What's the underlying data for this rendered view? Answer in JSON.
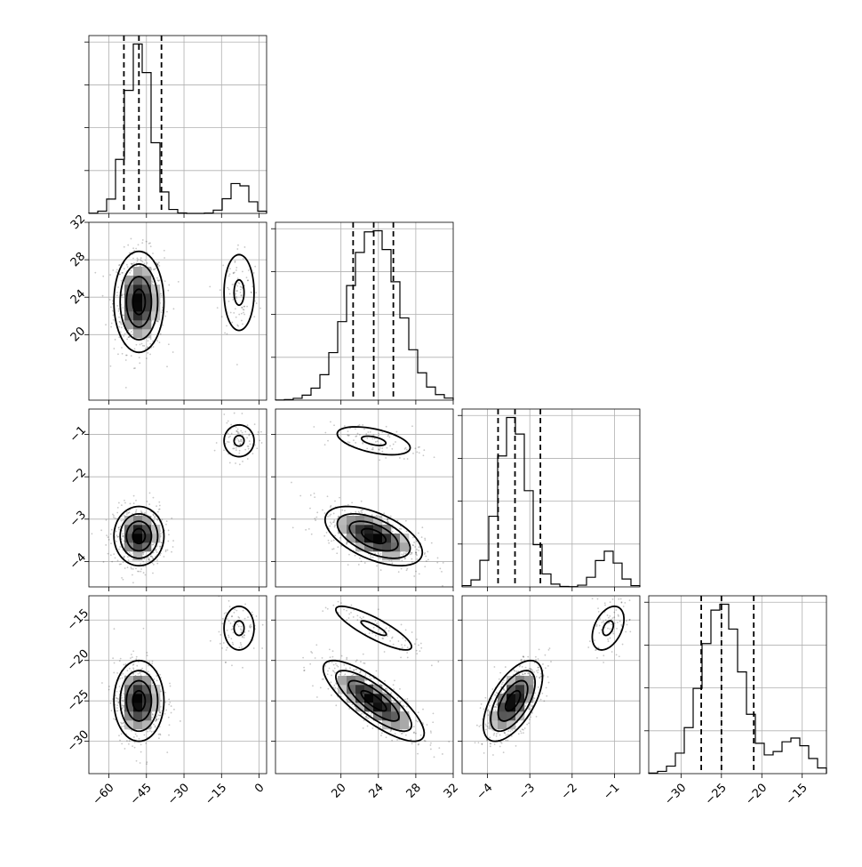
{
  "chart_data": {
    "type": "corner",
    "parameters": [
      {
        "range": [
          -68,
          3
        ],
        "ticks": [
          -60,
          -45,
          -30,
          -15,
          0
        ],
        "tick_labels": [
          "−60",
          "−45",
          "−30",
          "−15",
          "0"
        ],
        "quantiles": [
          -54,
          -48,
          -39
        ],
        "modes": [
          {
            "weight": 0.87,
            "mean": -48,
            "sd": 5
          },
          {
            "weight": 0.13,
            "mean": -8,
            "sd": 4
          }
        ],
        "hist_bins": 20
      },
      {
        "range": [
          13,
          32
        ],
        "ticks": [
          20,
          24,
          28,
          32
        ],
        "tick_labels": [
          "20",
          "24",
          "28",
          "32"
        ],
        "quantiles": [
          21.3,
          23.5,
          25.6
        ],
        "modes": [
          {
            "weight": 1.0,
            "mean": 23.5,
            "sd": 2.7
          }
        ],
        "hist_bins": 20
      },
      {
        "range": [
          -4.6,
          -0.4
        ],
        "ticks": [
          -4,
          -3,
          -2,
          -1
        ],
        "tick_labels": [
          "−4",
          "−3",
          "−2",
          "−1"
        ],
        "quantiles": [
          -3.75,
          -3.35,
          -2.75
        ],
        "modes": [
          {
            "weight": 0.87,
            "mean": -3.4,
            "sd": 0.35
          },
          {
            "weight": 0.13,
            "mean": -1.15,
            "sd": 0.25
          }
        ],
        "hist_bins": 20
      },
      {
        "range": [
          -34,
          -12
        ],
        "ticks": [
          -30,
          -25,
          -20,
          -15
        ],
        "tick_labels": [
          "−30",
          "−25",
          "−20",
          "−15"
        ],
        "quantiles": [
          -27.5,
          -25,
          -21
        ],
        "modes": [
          {
            "weight": 0.87,
            "mean": -25,
            "sd": 2.5
          },
          {
            "weight": 0.13,
            "mean": -16,
            "sd": 1.8
          }
        ],
        "hist_bins": 20
      }
    ],
    "diag_y_ticks": 4,
    "grid": true,
    "y_tick_labels_on": [
      1,
      2,
      3
    ],
    "x_tick_labels_on": [
      0,
      1,
      2,
      3
    ],
    "pairs": [
      {
        "row": 1,
        "col": 0,
        "clusters": [
          {
            "mx": -48,
            "my": 23.5,
            "sx": 5,
            "sy": 2.7,
            "rho": 0,
            "w": 0.87
          },
          {
            "mx": -8,
            "my": 24.5,
            "sx": 4,
            "sy": 2.7,
            "rho": 0,
            "w": 0.13
          }
        ]
      },
      {
        "row": 2,
        "col": 0,
        "clusters": [
          {
            "mx": -48,
            "my": -3.4,
            "sx": 5,
            "sy": 0.35,
            "rho": 0,
            "w": 0.87
          },
          {
            "mx": -8,
            "my": -1.15,
            "sx": 4,
            "sy": 0.25,
            "rho": 0,
            "w": 0.13
          }
        ]
      },
      {
        "row": 2,
        "col": 1,
        "clusters": [
          {
            "mx": 23.5,
            "my": -3.4,
            "sx": 2.6,
            "sy": 0.35,
            "rho": -0.55,
            "w": 0.87
          },
          {
            "mx": 23.5,
            "my": -1.15,
            "sx": 2.6,
            "sy": 0.22,
            "rho": -0.5,
            "w": 0.13
          }
        ]
      },
      {
        "row": 3,
        "col": 0,
        "clusters": [
          {
            "mx": -48,
            "my": -25,
            "sx": 5,
            "sy": 2.5,
            "rho": 0,
            "w": 0.87
          },
          {
            "mx": -8,
            "my": -16,
            "sx": 4,
            "sy": 1.8,
            "rho": 0,
            "w": 0.13
          }
        ]
      },
      {
        "row": 3,
        "col": 1,
        "clusters": [
          {
            "mx": 23.5,
            "my": -25,
            "sx": 2.7,
            "sy": 2.5,
            "rho": -0.8,
            "w": 0.87
          },
          {
            "mx": 23.5,
            "my": -16,
            "sx": 2.7,
            "sy": 1.8,
            "rho": -0.85,
            "w": 0.13
          }
        ]
      },
      {
        "row": 3,
        "col": 2,
        "clusters": [
          {
            "mx": -3.4,
            "my": -25,
            "sx": 0.35,
            "sy": 2.5,
            "rho": 0.6,
            "w": 0.87
          },
          {
            "mx": -1.15,
            "my": -16,
            "sx": 0.25,
            "sy": 1.8,
            "rho": 0.4,
            "w": 0.13
          }
        ]
      }
    ]
  }
}
